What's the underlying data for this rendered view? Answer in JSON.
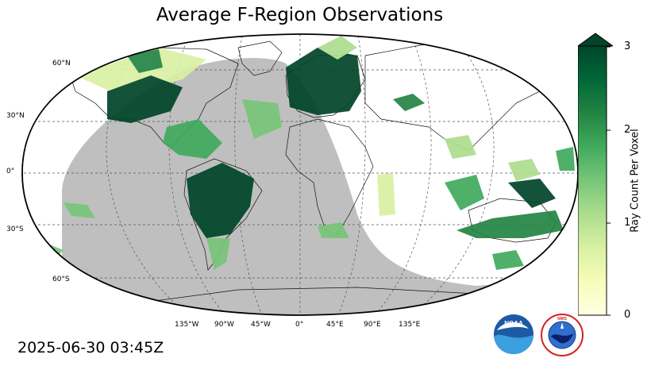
{
  "title": "Average F-Region Observations",
  "timestamp": "2025-06-30 03:45Z",
  "map": {
    "projection": "Robinson",
    "lat_labels": [
      "60°N",
      "30°N",
      "0°",
      "30°S",
      "60°S"
    ],
    "lon_labels": [
      "135°W",
      "90°W",
      "45°W",
      "0°",
      "45°E",
      "90°E",
      "135°E"
    ],
    "night_shade_color": "#bfbfbf",
    "coastline_color": "#000000"
  },
  "colorbar": {
    "label": "Ray Count Per Voxel",
    "ticks": [
      "0",
      "1",
      "2",
      "3"
    ],
    "range": [
      0,
      3
    ],
    "extend": "max",
    "colormap": "YlGn",
    "colors": [
      "#ffffe5",
      "#f7fcb9",
      "#d9f0a3",
      "#addd8e",
      "#78c679",
      "#41ab5d",
      "#238443",
      "#006837",
      "#004529"
    ]
  },
  "logos": {
    "noaa": {
      "icon": "noaa-logo",
      "text": "NOAA"
    },
    "nws": {
      "icon": "nws-logo",
      "text": "NATIONAL WEATHER SERVICE"
    }
  }
}
